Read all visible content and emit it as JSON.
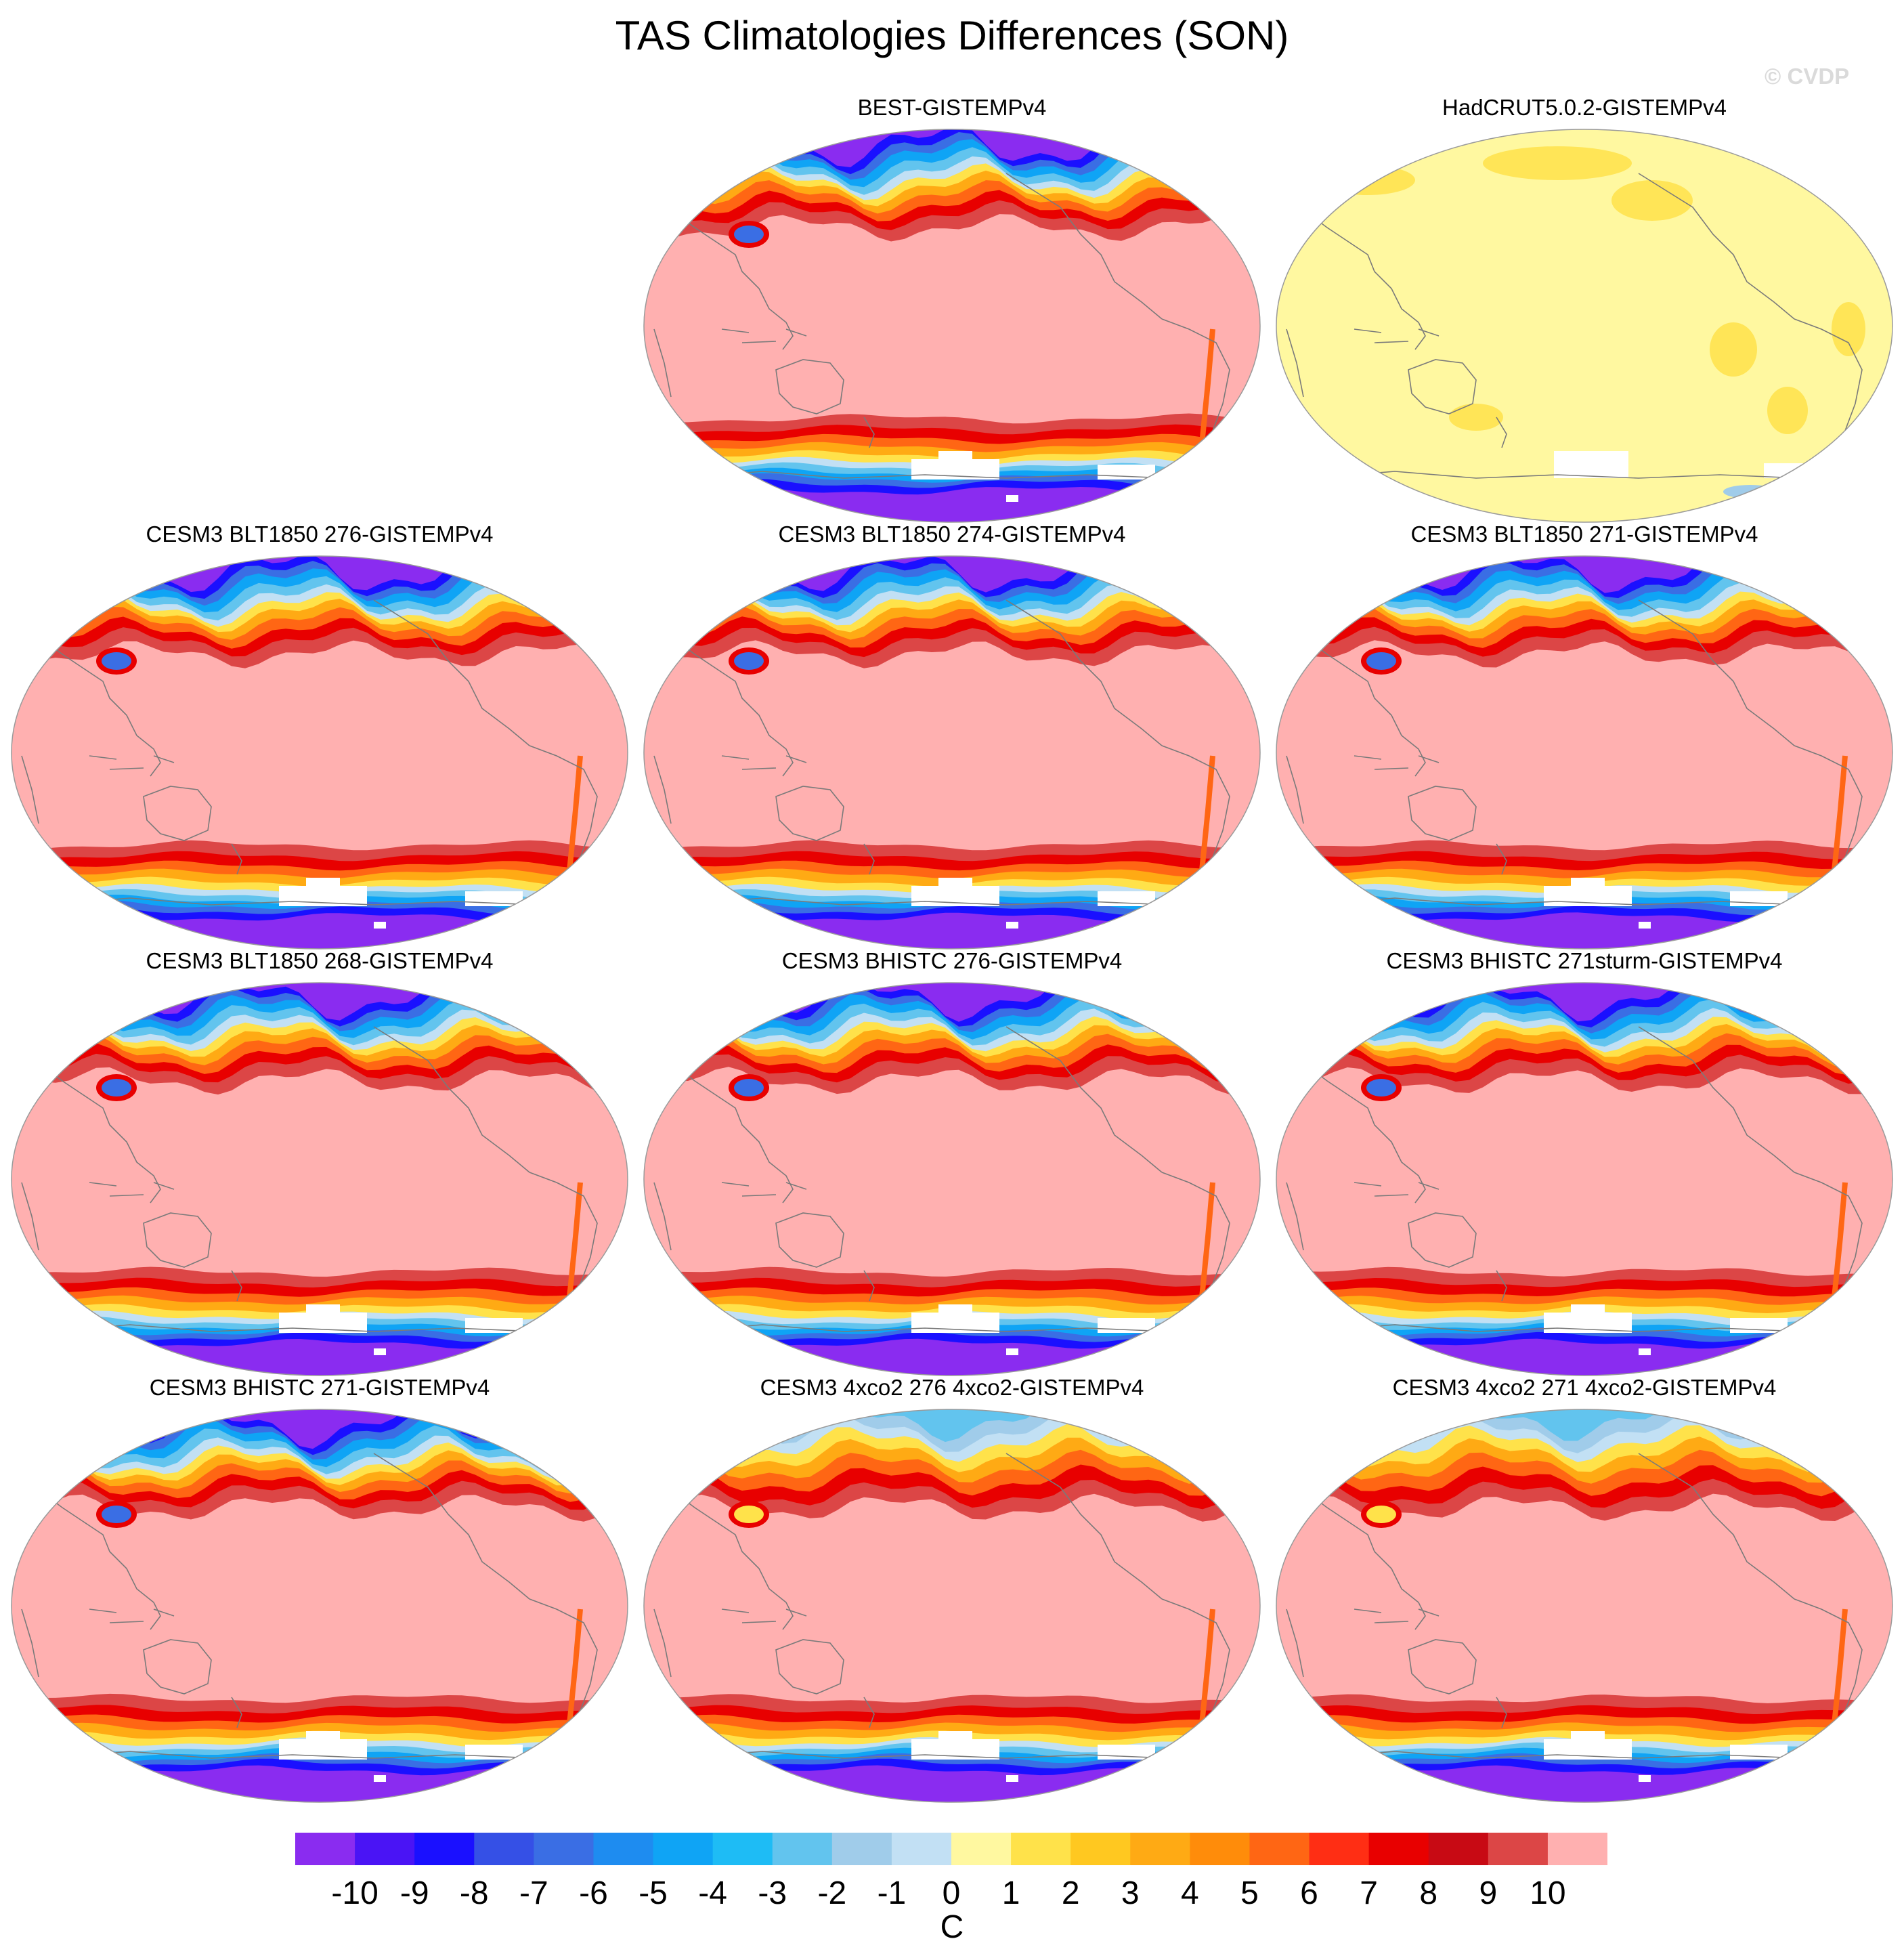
{
  "title": "TAS Climatologies Differences (SON)",
  "watermark": "© CVDP",
  "panels": [
    {
      "label": "BEST-GISTEMPv4",
      "style": "warm"
    },
    {
      "label": "HadCRUT5.0.2-GISTEMPv4",
      "style": "pale"
    },
    {
      "label": "CESM3 BLT1850 276-GISTEMPv4",
      "style": "warm"
    },
    {
      "label": "CESM3 BLT1850 274-GISTEMPv4",
      "style": "warm"
    },
    {
      "label": "CESM3 BLT1850 271-GISTEMPv4",
      "style": "warm"
    },
    {
      "label": "CESM3 BLT1850 268-GISTEMPv4",
      "style": "warm"
    },
    {
      "label": "CESM3 BHISTC 276-GISTEMPv4",
      "style": "warm"
    },
    {
      "label": "CESM3 BHISTC 271sturm-GISTEMPv4",
      "style": "warm"
    },
    {
      "label": "CESM3 BHISTC 271-GISTEMPv4",
      "style": "warm"
    },
    {
      "label": "CESM3 4xco2 276 4xco2-GISTEMPv4",
      "style": "co2"
    },
    {
      "label": "CESM3 4xco2 271 4xco2-GISTEMPv4",
      "style": "co2"
    }
  ],
  "colorbar": {
    "units": "C",
    "tick_labels": [
      "-10",
      "-9",
      "-8",
      "-7",
      "-6",
      "-5",
      "-4",
      "-3",
      "-2",
      "-1",
      "0",
      "1",
      "2",
      "3",
      "4",
      "5",
      "6",
      "7",
      "8",
      "9",
      "10"
    ],
    "colors": [
      "#8a2cf0",
      "#4a14f5",
      "#1a10ff",
      "#3550e6",
      "#3a6ee4",
      "#1e8cf0",
      "#0fa4f5",
      "#1ebcf5",
      "#62c4ee",
      "#a0ccea",
      "#c2e0f4",
      "#fff8a0",
      "#ffe24a",
      "#ffc820",
      "#ffaa14",
      "#ff8c0a",
      "#ff6614",
      "#ff2e14",
      "#e80000",
      "#c80a14",
      "#dc4646",
      "#ffb0b0"
    ]
  }
}
